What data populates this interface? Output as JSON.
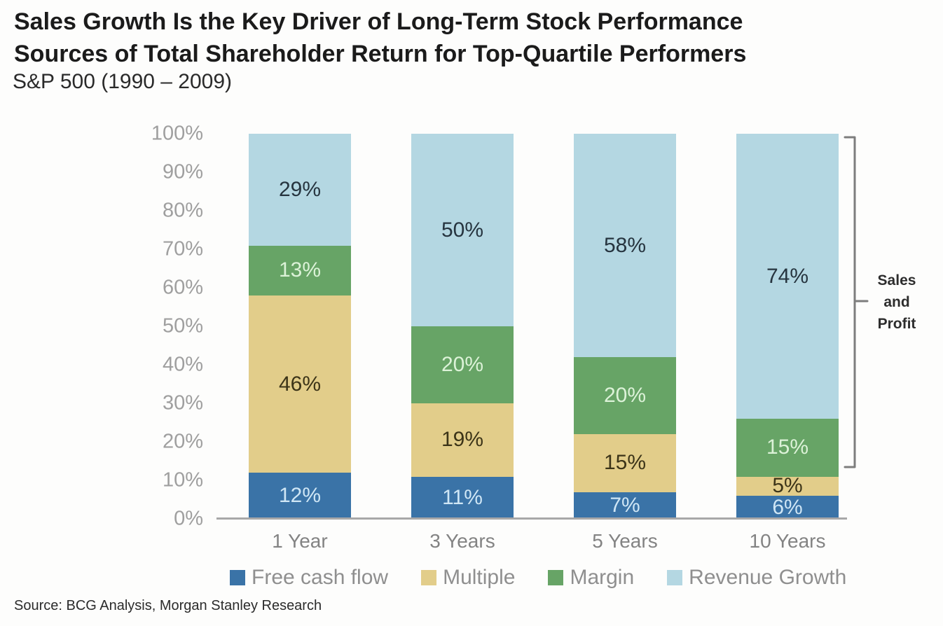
{
  "header": {
    "title_line1": "Sales Growth Is the Key Driver of Long-Term Stock Performance",
    "title_line2": "Sources of Total Shareholder Return for Top-Quartile Performers",
    "subtitle": "S&P 500 (1990 – 2009)"
  },
  "annotation": {
    "line1": "Sales",
    "line2": "and",
    "line3": "Profit"
  },
  "footer": {
    "source": "Source: BCG Analysis, Morgan Stanley Research"
  },
  "colors": {
    "free_cash_flow": "#3a73a7",
    "multiple": "#e2cd8a",
    "margin": "#67a466",
    "revenue_growth": "#b4d7e2",
    "axis_line": "#a8a8a8",
    "bracket": "#7d7d7d"
  },
  "chart_data": {
    "type": "bar",
    "stacked": true,
    "title": "Sources of Total Shareholder Return for Top-Quartile Performers, S&P 500 (1990 – 2009)",
    "categories": [
      "1 Year",
      "3 Years",
      "5 Years",
      "10 Years"
    ],
    "series": [
      {
        "name": "Free cash flow",
        "color": "#3a73a7",
        "label_color": "#cfe6f5",
        "values": [
          12,
          11,
          7,
          6
        ]
      },
      {
        "name": "Multiple",
        "color": "#e2cd8a",
        "label_color": "#3c3418",
        "values": [
          46,
          19,
          15,
          5
        ]
      },
      {
        "name": "Margin",
        "color": "#67a466",
        "label_color": "#dcf2d8",
        "values": [
          13,
          20,
          20,
          15
        ]
      },
      {
        "name": "Revenue Growth",
        "color": "#b4d7e2",
        "label_color": "#26343f",
        "values": [
          29,
          50,
          58,
          74
        ]
      }
    ],
    "value_suffix": "%",
    "ylim": [
      0,
      100
    ],
    "y_ticks": [
      "0%",
      "10%",
      "20%",
      "30%",
      "40%",
      "50%",
      "60%",
      "70%",
      "80%",
      "90%",
      "100%"
    ],
    "grid": false,
    "legend_position": "bottom",
    "annotation": "Bracket labeled 'Sales and Profit' spans the Margin + Revenue Growth portion (89%) of the 10 Years bar"
  }
}
